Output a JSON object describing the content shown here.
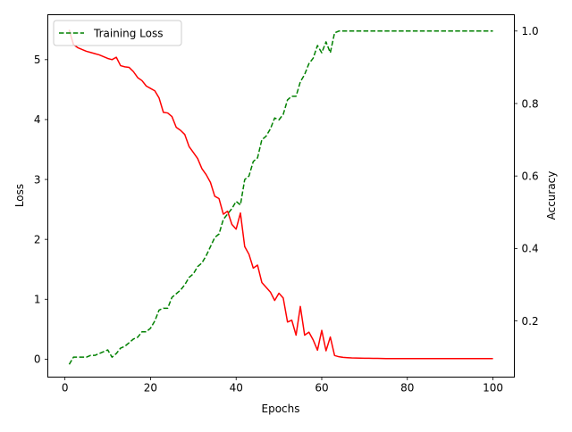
{
  "chart_data": {
    "type": "line",
    "xlabel": "Epochs",
    "ylabel": "Loss",
    "y2label": "Accuracy",
    "xlim": [
      -4.0,
      105.0
    ],
    "ylim": [
      -0.3,
      5.75
    ],
    "y2lim": [
      0.045,
      1.045
    ],
    "xticks": [
      0,
      20,
      40,
      60,
      80,
      100
    ],
    "yticks": [
      0,
      1,
      2,
      3,
      4,
      5
    ],
    "y2ticks": [
      0.2,
      0.4,
      0.6,
      0.8,
      1.0
    ],
    "grid": false,
    "legend": {
      "position": "top-left",
      "entries": [
        "Training Loss"
      ]
    },
    "x": [
      1,
      2,
      3,
      4,
      5,
      6,
      7,
      8,
      9,
      10,
      11,
      12,
      13,
      14,
      15,
      16,
      17,
      18,
      19,
      20,
      21,
      22,
      23,
      24,
      25,
      26,
      27,
      28,
      29,
      30,
      31,
      32,
      33,
      34,
      35,
      36,
      37,
      38,
      39,
      40,
      41,
      42,
      43,
      44,
      45,
      46,
      47,
      48,
      49,
      50,
      51,
      52,
      53,
      54,
      55,
      56,
      57,
      58,
      59,
      60,
      61,
      62,
      63,
      64,
      65,
      66,
      67,
      68,
      69,
      70,
      71,
      72,
      73,
      74,
      75,
      76,
      77,
      78,
      79,
      80,
      81,
      82,
      83,
      84,
      85,
      86,
      87,
      88,
      89,
      90,
      91,
      92,
      93,
      94,
      95,
      96,
      97,
      98,
      99,
      100
    ],
    "series": [
      {
        "name": "Training Loss",
        "axis": "right",
        "color": "#008000",
        "dash": "dashed",
        "values": [
          0.08,
          0.1,
          0.1,
          0.1,
          0.1,
          0.105,
          0.105,
          0.11,
          0.115,
          0.12,
          0.1,
          0.11,
          0.125,
          0.13,
          0.14,
          0.15,
          0.155,
          0.17,
          0.17,
          0.18,
          0.2,
          0.23,
          0.235,
          0.235,
          0.265,
          0.275,
          0.285,
          0.3,
          0.32,
          0.33,
          0.35,
          0.36,
          0.38,
          0.405,
          0.43,
          0.44,
          0.48,
          0.495,
          0.51,
          0.53,
          0.52,
          0.59,
          0.6,
          0.64,
          0.65,
          0.7,
          0.71,
          0.73,
          0.76,
          0.755,
          0.77,
          0.81,
          0.82,
          0.82,
          0.86,
          0.88,
          0.91,
          0.925,
          0.96,
          0.94,
          0.97,
          0.94,
          0.995,
          1.0,
          1.0,
          1.0,
          1.0,
          1.0,
          1.0,
          1.0,
          1.0,
          1.0,
          1.0,
          1.0,
          1.0,
          1.0,
          1.0,
          1.0,
          1.0,
          1.0,
          1.0,
          1.0,
          1.0,
          1.0,
          1.0,
          1.0,
          1.0,
          1.0,
          1.0,
          1.0,
          1.0,
          1.0,
          1.0,
          1.0,
          1.0,
          1.0,
          1.0,
          1.0,
          1.0,
          1.0
        ]
      },
      {
        "axis": "left",
        "color": "#ff0000",
        "dash": "solid",
        "values": [
          5.5,
          5.25,
          5.2,
          5.17,
          5.14,
          5.12,
          5.1,
          5.08,
          5.05,
          5.02,
          5.0,
          5.04,
          4.9,
          4.88,
          4.87,
          4.8,
          4.7,
          4.65,
          4.56,
          4.52,
          4.48,
          4.36,
          4.12,
          4.11,
          4.05,
          3.87,
          3.82,
          3.75,
          3.55,
          3.45,
          3.35,
          3.18,
          3.08,
          2.95,
          2.72,
          2.68,
          2.42,
          2.47,
          2.25,
          2.17,
          2.44,
          1.88,
          1.75,
          1.52,
          1.57,
          1.28,
          1.2,
          1.12,
          0.98,
          1.1,
          1.02,
          0.62,
          0.65,
          0.4,
          0.88,
          0.4,
          0.45,
          0.32,
          0.15,
          0.48,
          0.14,
          0.37,
          0.06,
          0.04,
          0.03,
          0.025,
          0.02,
          0.018,
          0.016,
          0.015,
          0.014,
          0.013,
          0.012,
          0.011,
          0.01,
          0.01,
          0.01,
          0.01,
          0.01,
          0.01,
          0.01,
          0.01,
          0.01,
          0.01,
          0.01,
          0.01,
          0.01,
          0.01,
          0.01,
          0.01,
          0.01,
          0.01,
          0.01,
          0.01,
          0.01,
          0.01,
          0.01,
          0.01,
          0.01,
          0.01
        ]
      }
    ]
  }
}
